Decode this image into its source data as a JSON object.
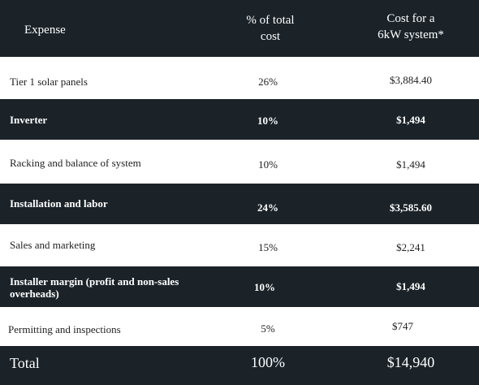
{
  "header": {
    "expense": "Expense",
    "pct_line1": "% of total",
    "pct_line2": "cost",
    "cost_line1": "Cost for a",
    "cost_line2": "6kW system*"
  },
  "rows": [
    {
      "expense": "Tier 1 solar panels",
      "pct": "26%",
      "cost": "$3,884.40"
    },
    {
      "expense": "Inverter",
      "pct": "10%",
      "cost": "$1,494"
    },
    {
      "expense": "Racking and balance of system",
      "pct": "10%",
      "cost": "$1,494"
    },
    {
      "expense": "Installation and labor",
      "pct": "24%",
      "cost": "$3,585.60"
    },
    {
      "expense": "Sales and marketing",
      "pct": "15%",
      "cost": "$2,241"
    },
    {
      "expense_line1": "Installer margin (profit and non-sales",
      "expense_line2": "overheads)",
      "pct": "10%",
      "cost": "$1,494"
    },
    {
      "expense": "Permitting and inspections",
      "pct": "5%",
      "cost": "$747"
    }
  ],
  "total": {
    "label": "Total",
    "pct": "100%",
    "cost": "$14,940"
  },
  "colors": {
    "dark_row": "#1b2329",
    "light_row": "#ffffff"
  }
}
